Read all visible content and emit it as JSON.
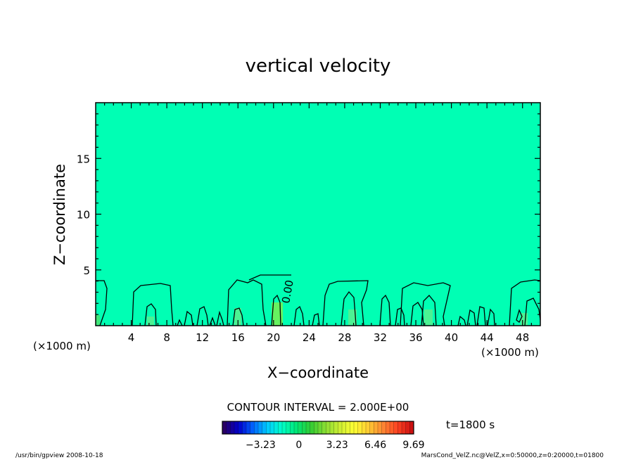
{
  "chart_data": {
    "type": "heatmap",
    "title": "vertical velocity",
    "xlabel": "X−coordinate",
    "ylabel": "Z−coordinate",
    "x_unit_left": "(×1000 m)",
    "x_unit_right": "(×1000 m)",
    "xlim": [
      0,
      50
    ],
    "ylim": [
      0,
      20
    ],
    "x_ticks": [
      4,
      8,
      12,
      16,
      20,
      24,
      28,
      32,
      36,
      40,
      44,
      48
    ],
    "y_ticks": [
      5,
      10,
      15
    ],
    "background_color": "#00FFB4",
    "contour_interval_label": "CONTOUR INTERVAL = 2.000E+00",
    "contour_label": "0.00",
    "time_label": "t=1800 s",
    "colorbar": {
      "ticks": [
        "−3.23",
        "0",
        "3.23",
        "6.46",
        "9.69"
      ],
      "range": [
        -6.46,
        9.69
      ],
      "colors": [
        "#2a0066",
        "#0000cc",
        "#0066ff",
        "#00ccff",
        "#00ffc8",
        "#00e676",
        "#33cc33",
        "#88dd33",
        "#ccee33",
        "#ffff33",
        "#ffcc33",
        "#ff8833",
        "#ff4422",
        "#cc1111"
      ]
    },
    "footer_left": "/usr/bin/gpview  2008-10-18",
    "footer_right": "MarsCond_VelZ.nc@VelZ,x=0:50000,z=0:20000,t=01800"
  }
}
